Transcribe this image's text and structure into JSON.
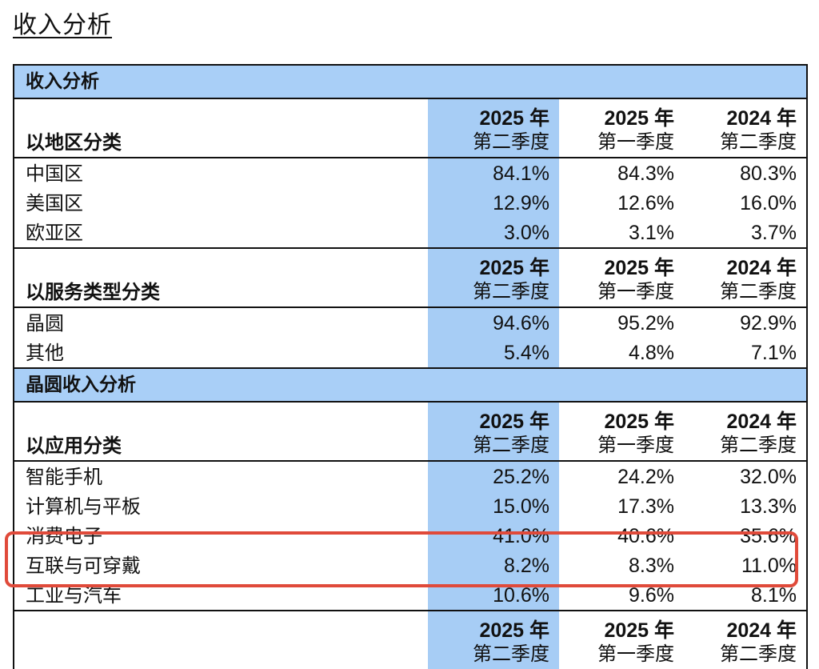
{
  "page_title": "收入分析",
  "col_headers": [
    {
      "year": "2025 年",
      "quarter": "第二季度"
    },
    {
      "year": "2025 年",
      "quarter": "第一季度"
    },
    {
      "year": "2024 年",
      "quarter": "第二季度"
    }
  ],
  "sections": [
    {
      "title": "收入分析",
      "groups": [
        {
          "label": "以地区分类",
          "rows": [
            {
              "label": "中国区",
              "values": [
                "84.1%",
                "84.3%",
                "80.3%"
              ]
            },
            {
              "label": "美国区",
              "values": [
                "12.9%",
                "12.6%",
                "16.0%"
              ]
            },
            {
              "label": "欧亚区",
              "values": [
                "3.0%",
                "3.1%",
                "3.7%"
              ]
            }
          ]
        },
        {
          "label": "以服务类型分类",
          "rows": [
            {
              "label": "晶圆",
              "values": [
                "94.6%",
                "95.2%",
                "92.9%"
              ]
            },
            {
              "label": "其他",
              "values": [
                "5.4%",
                "4.8%",
                "7.1%"
              ]
            }
          ]
        }
      ]
    },
    {
      "title": "晶圆收入分析",
      "groups": [
        {
          "label": "以应用分类",
          "rows": [
            {
              "label": "智能手机",
              "values": [
                "25.2%",
                "24.2%",
                "32.0%"
              ]
            },
            {
              "label": "计算机与平板",
              "values": [
                "15.0%",
                "17.3%",
                "13.3%"
              ]
            },
            {
              "label": "消费电子",
              "values": [
                "41.0%",
                "40.6%",
                "35.6%"
              ]
            },
            {
              "label": "互联与可穿戴",
              "values": [
                "8.2%",
                "8.3%",
                "11.0%"
              ]
            },
            {
              "label": "工业与汽车",
              "values": [
                "10.6%",
                "9.6%",
                "8.1%"
              ]
            }
          ]
        },
        {
          "label": "",
          "rows": []
        }
      ]
    }
  ],
  "highlight_color": "#a7cdf5",
  "callout_color": "#e04a3a"
}
